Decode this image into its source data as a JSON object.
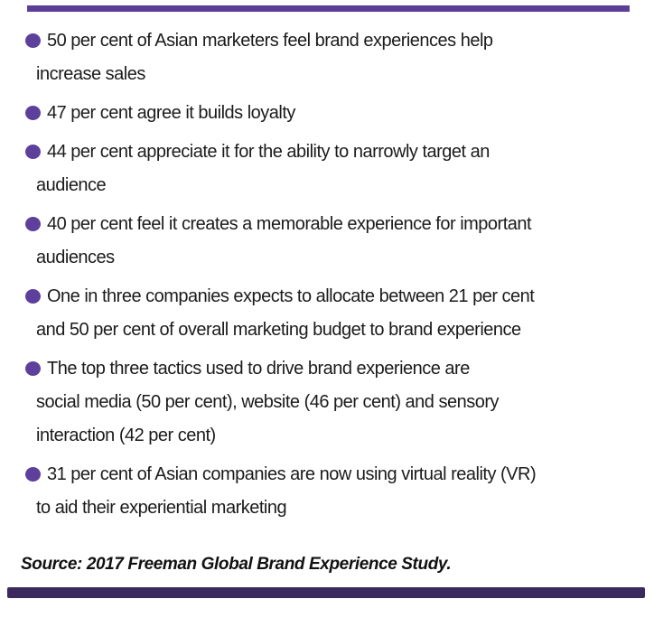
{
  "colors": {
    "bullet": "#5d3f9c",
    "top_rule": "#5b3e97",
    "bottom_rule": "#3b2a5e",
    "text": "#1b1b1b"
  },
  "fact_list": {
    "items": [
      {
        "lines": [
          "50 per cent of Asian marketers feel brand experiences help",
          "increase sales"
        ]
      },
      {
        "lines": [
          "47 per cent agree it builds loyalty"
        ]
      },
      {
        "lines": [
          "44 per cent appreciate it for the ability to narrowly target an",
          "audience"
        ]
      },
      {
        "lines": [
          "40 per cent feel it creates a memorable experience for important",
          "audiences"
        ]
      },
      {
        "lines": [
          "One in three companies expects to allocate between 21 per cent",
          "and 50 per cent of overall marketing budget to brand experience"
        ]
      },
      {
        "lines": [
          "The top three tactics used to drive brand experience are",
          "social media (50 per cent), website (46 per cent) and sensory",
          "interaction (42 per cent)"
        ]
      },
      {
        "lines": [
          "31 per cent of Asian companies are now using virtual reality (VR)",
          "to aid their experiential marketing"
        ]
      }
    ]
  },
  "source": {
    "label": "Source: 2017 Freeman Global Brand Experience Study."
  }
}
